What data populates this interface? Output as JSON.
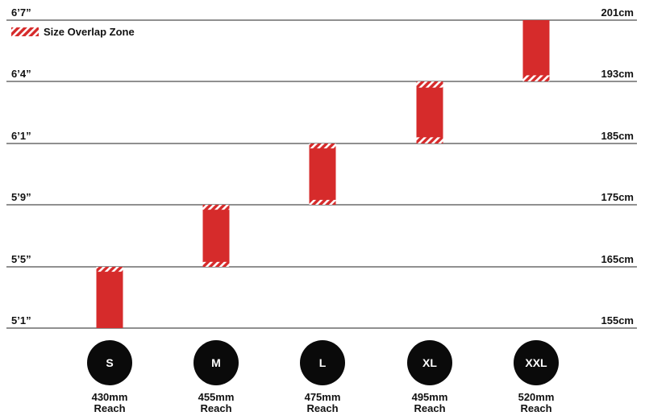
{
  "colors": {
    "bar": "#d62b2b",
    "overlap_stripe": "#ffffff",
    "gridline": "#222222",
    "size_circle": "#0a0a0a",
    "text": "#111111"
  },
  "legend": {
    "label": "Size Overlap Zone",
    "placement": "top-left"
  },
  "chart_data": {
    "type": "bar",
    "subtype": "floating-range",
    "title": "",
    "xlabel": "",
    "ylabel": "",
    "grid": true,
    "y_ticks_left": [
      "5’1”",
      "5’5”",
      "5’9”",
      "6’1”",
      "6’4”",
      "6’7”"
    ],
    "y_ticks_right": [
      "155cm",
      "165cm",
      "175cm",
      "185cm",
      "193cm",
      "201cm"
    ],
    "categories": [
      "S",
      "M",
      "L",
      "XL",
      "XXL"
    ],
    "reach": [
      {
        "value": "430mm",
        "unit": "Reach"
      },
      {
        "value": "455mm",
        "unit": "Reach"
      },
      {
        "value": "475mm",
        "unit": "Reach"
      },
      {
        "value": "495mm",
        "unit": "Reach"
      },
      {
        "value": "520mm",
        "unit": "Reach"
      }
    ],
    "ranges_cm": [
      {
        "size": "S",
        "low": 155,
        "high": 165
      },
      {
        "size": "M",
        "low": 165,
        "high": 175
      },
      {
        "size": "L",
        "low": 175,
        "high": 185
      },
      {
        "size": "XL",
        "low": 185,
        "high": 193
      },
      {
        "size": "XXL",
        "low": 193,
        "high": 201
      }
    ],
    "overlap_zones_cm": [
      {
        "size": "S",
        "bands": [
          [
            164.2,
            165
          ]
        ]
      },
      {
        "size": "M",
        "bands": [
          [
            165,
            165.8
          ],
          [
            174.2,
            175
          ]
        ]
      },
      {
        "size": "L",
        "bands": [
          [
            175,
            175.8
          ],
          [
            184.2,
            185
          ]
        ]
      },
      {
        "size": "XL",
        "bands": [
          [
            185,
            185.8
          ],
          [
            192.2,
            193
          ]
        ]
      },
      {
        "size": "XXL",
        "bands": [
          [
            193,
            193.8
          ]
        ]
      }
    ]
  }
}
